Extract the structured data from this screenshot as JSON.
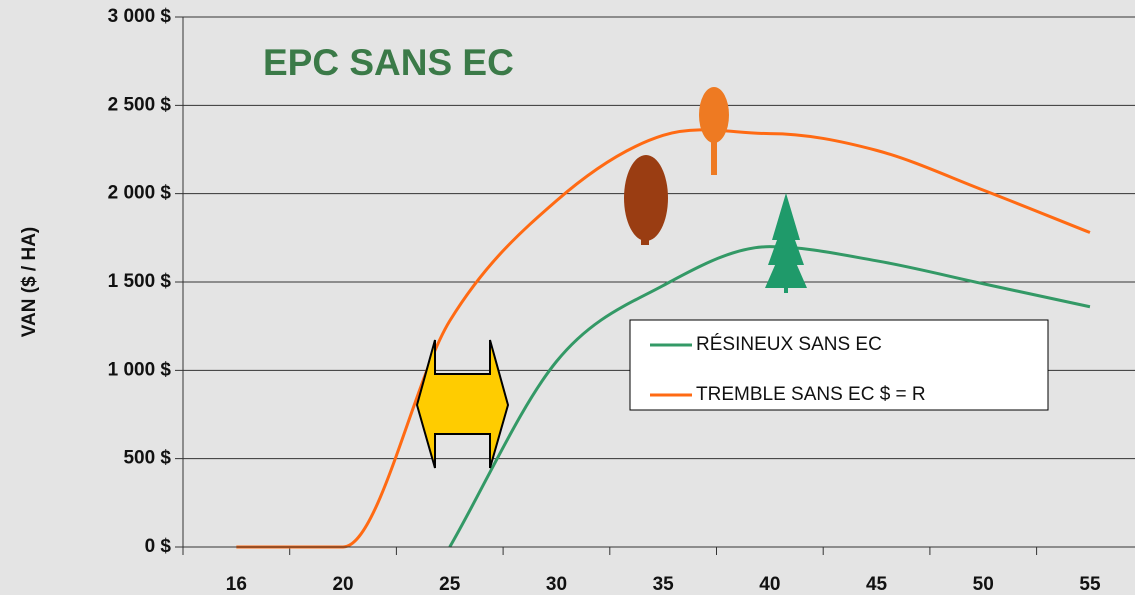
{
  "chart_data": {
    "type": "line",
    "title": "EPC SANS EC",
    "y_label": "VAN ($ / HA)",
    "categories": [
      "16",
      "20",
      "25",
      "30",
      "35",
      "40",
      "45",
      "50",
      "55"
    ],
    "series": [
      {
        "name": "RÉSINEUX SANS EC",
        "color": "#339966",
        "values": [
          null,
          null,
          0,
          1050,
          1480,
          1700,
          1620,
          1490,
          1360
        ]
      },
      {
        "name": "TREMBLE SANS EC $ = R",
        "color": "#ff6a13",
        "values": [
          0,
          0,
          1280,
          1960,
          2330,
          2340,
          2245,
          2020,
          1780
        ]
      }
    ],
    "ylim": [
      0,
      3000
    ],
    "yticks": [
      {
        "value": 0,
        "label": "0 $"
      },
      {
        "value": 500,
        "label": "500 $"
      },
      {
        "value": 1000,
        "label": "1 000 $"
      },
      {
        "value": 1500,
        "label": "1 500 $"
      },
      {
        "value": 2000,
        "label": "2 000 $"
      },
      {
        "value": 2500,
        "label": "2 500 $"
      },
      {
        "value": 3000,
        "label": "3 000 $"
      }
    ],
    "grid": true
  }
}
